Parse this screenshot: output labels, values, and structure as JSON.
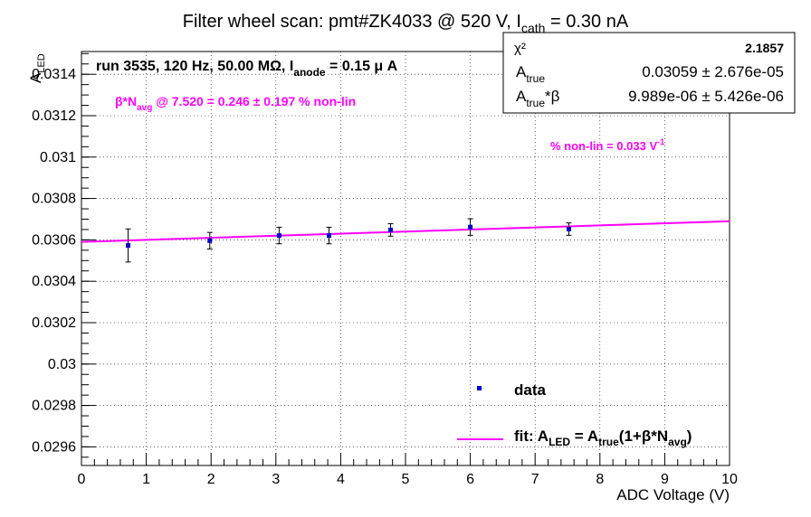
{
  "chart_data": {
    "type": "scatter",
    "title_prefix": "Filter wheel scan: pmt#ZK4033 @   520 V, I",
    "title_sub": "cath",
    "title_suffix": " = 0.30 nA",
    "xlabel": "ADC Voltage (V)",
    "ylabel_main": "A",
    "ylabel_sub": "LED",
    "xlim": [
      0,
      10
    ],
    "ylim": [
      0.02951,
      0.03151
    ],
    "x_ticks": [
      0,
      1,
      2,
      3,
      4,
      5,
      6,
      7,
      8,
      9,
      10
    ],
    "x_tick_labels": [
      "0",
      "1",
      "2",
      "3",
      "4",
      "5",
      "6",
      "7",
      "8",
      "9",
      "10"
    ],
    "y_ticks": [
      0.0296,
      0.0298,
      0.03,
      0.0302,
      0.0304,
      0.0306,
      0.0308,
      0.031,
      0.0312,
      0.0314
    ],
    "y_tick_labels": [
      "0.0296",
      "0.0298",
      "0.03",
      "0.0302",
      "0.0304",
      "0.0306",
      "0.0308",
      "0.031",
      "0.0312",
      "0.0314"
    ],
    "grid": true,
    "series": [
      {
        "name": "data",
        "points": [
          {
            "x": 0.72,
            "y": 0.030573,
            "err": 8e-05
          },
          {
            "x": 1.98,
            "y": 0.030596,
            "err": 4e-05
          },
          {
            "x": 3.05,
            "y": 0.030621,
            "err": 4e-05
          },
          {
            "x": 3.82,
            "y": 0.030621,
            "err": 4e-05
          },
          {
            "x": 4.77,
            "y": 0.030648,
            "err": 3e-05
          },
          {
            "x": 6.0,
            "y": 0.030662,
            "err": 4e-05
          },
          {
            "x": 7.52,
            "y": 0.030652,
            "err": 3e-05
          }
        ],
        "color": "#0000cc"
      },
      {
        "name": "fit",
        "fit": {
          "A_true": 0.03059,
          "beta": 1e-05,
          "x_range": [
            0,
            10
          ]
        },
        "color": "#ff00ff"
      }
    ],
    "legend": {
      "position": "bottom-right",
      "data_label": "data",
      "fit_label": {
        "a": "fit: A",
        "b": "LED",
        "c": " = A",
        "d": "true",
        "e": "(1+β*N",
        "f": "avg",
        "g": ")"
      }
    },
    "stats_box": {
      "position": "top-right",
      "rows": [
        {
          "label": "χ²",
          "value": "2.1857"
        },
        {
          "label": "A",
          "label_sub": "true",
          "value": "0.03059 ± 2.676e-05"
        },
        {
          "label": "A",
          "label_sub": "true",
          "label_suffix": "*β",
          "value": "9.989e-06 ± 5.426e-06"
        }
      ]
    },
    "annotations": {
      "run_info": {
        "a": "run 3535, 120 Hz, 50.00 MΩ, I",
        "b": "anode",
        "c": " = 0.15 μ A"
      },
      "beta_info": {
        "a": "β*N",
        "b": "avg",
        "c": " @ 7.520 = 0.246 ± 0.197 % non-lin"
      },
      "nonlin_info": {
        "a": "% non-lin = 0.033 V",
        "b": "-1"
      }
    }
  }
}
